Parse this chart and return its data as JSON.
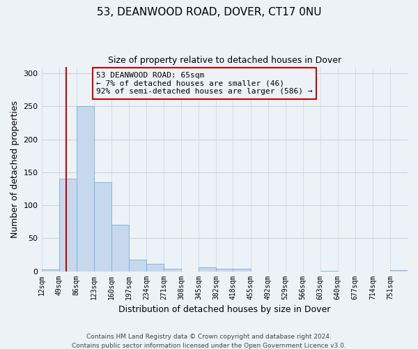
{
  "title": "53, DEANWOOD ROAD, DOVER, CT17 0NU",
  "subtitle": "Size of property relative to detached houses in Dover",
  "xlabel": "Distribution of detached houses by size in Dover",
  "ylabel": "Number of detached properties",
  "bar_color": "#c5d8ed",
  "bar_edge_color": "#7aafd4",
  "bin_labels": [
    "12sqm",
    "49sqm",
    "86sqm",
    "123sqm",
    "160sqm",
    "197sqm",
    "234sqm",
    "271sqm",
    "308sqm",
    "345sqm",
    "382sqm",
    "418sqm",
    "455sqm",
    "492sqm",
    "529sqm",
    "566sqm",
    "603sqm",
    "640sqm",
    "677sqm",
    "714sqm",
    "751sqm"
  ],
  "bar_values": [
    3,
    140,
    250,
    135,
    70,
    18,
    11,
    4,
    0,
    6,
    4,
    4,
    0,
    0,
    0,
    0,
    1,
    0,
    0,
    0,
    2
  ],
  "ylim": [
    0,
    310
  ],
  "yticks": [
    0,
    50,
    100,
    150,
    200,
    250,
    300
  ],
  "property_line_x": 65,
  "bin_edges_sqm": [
    12,
    49,
    86,
    123,
    160,
    197,
    234,
    271,
    308,
    345,
    382,
    418,
    455,
    492,
    529,
    566,
    603,
    640,
    677,
    714,
    751
  ],
  "annotation_text": "53 DEANWOOD ROAD: 65sqm\n← 7% of detached houses are smaller (46)\n92% of semi-detached houses are larger (586) →",
  "footer_line1": "Contains HM Land Registry data © Crown copyright and database right 2024.",
  "footer_line2": "Contains public sector information licensed under the Open Government Licence v3.0.",
  "background_color": "#edf2f7",
  "grid_color": "#c8d4e3",
  "annotation_box_color": "#cc0000",
  "property_line_color": "#cc0000"
}
